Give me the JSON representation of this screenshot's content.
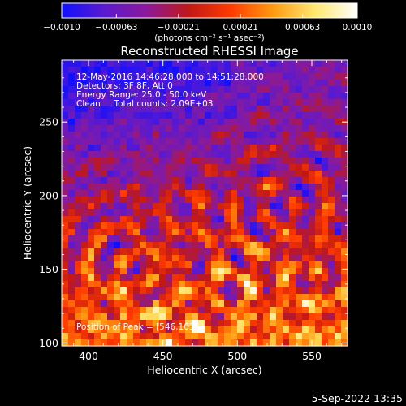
{
  "chart_data": {
    "type": "heatmap",
    "title": "Reconstructed RHESSI Image",
    "xlabel": "Heliocentric X (arcsec)",
    "ylabel": "Heliocentric Y (arcsec)",
    "xlim": [
      382,
      574
    ],
    "ylim": [
      98,
      292
    ],
    "xticks": [
      400,
      450,
      500,
      550
    ],
    "yticks": [
      100,
      150,
      200,
      250
    ],
    "colorbar": {
      "range": [
        -0.001,
        0.001
      ],
      "ticks": [
        -0.001,
        -0.00063,
        -0.00021,
        0.00021,
        0.00063,
        0.001
      ],
      "tick_labels": [
        "−0.0010",
        "−0.00063",
        "−0.00021",
        "0.00021",
        "0.00063",
        "0.0010"
      ],
      "units_label": "(photons cm⁻² s⁻¹ asec⁻²)",
      "colors": [
        "#1010ff",
        "#5a1ad0",
        "#8a1a9a",
        "#c01818",
        "#ff3a00",
        "#ff9a10",
        "#ffe870",
        "#ffffff"
      ]
    },
    "peak_position": [
      546,
      103
    ],
    "annotations": [
      "12-May-2016 14:46:28.000 to 14:51:28.000",
      "Detectors: 3F 8F, Att 0",
      "Energy Range: 25.0 - 50.0 keV",
      "Clean     Total counts: 2.09E+03"
    ],
    "peak_label": "Position of Peak = [546,103]",
    "grid": false,
    "legend": "colorbar top"
  },
  "footer": {
    "timestamp": "5-Sep-2022 13:35"
  }
}
